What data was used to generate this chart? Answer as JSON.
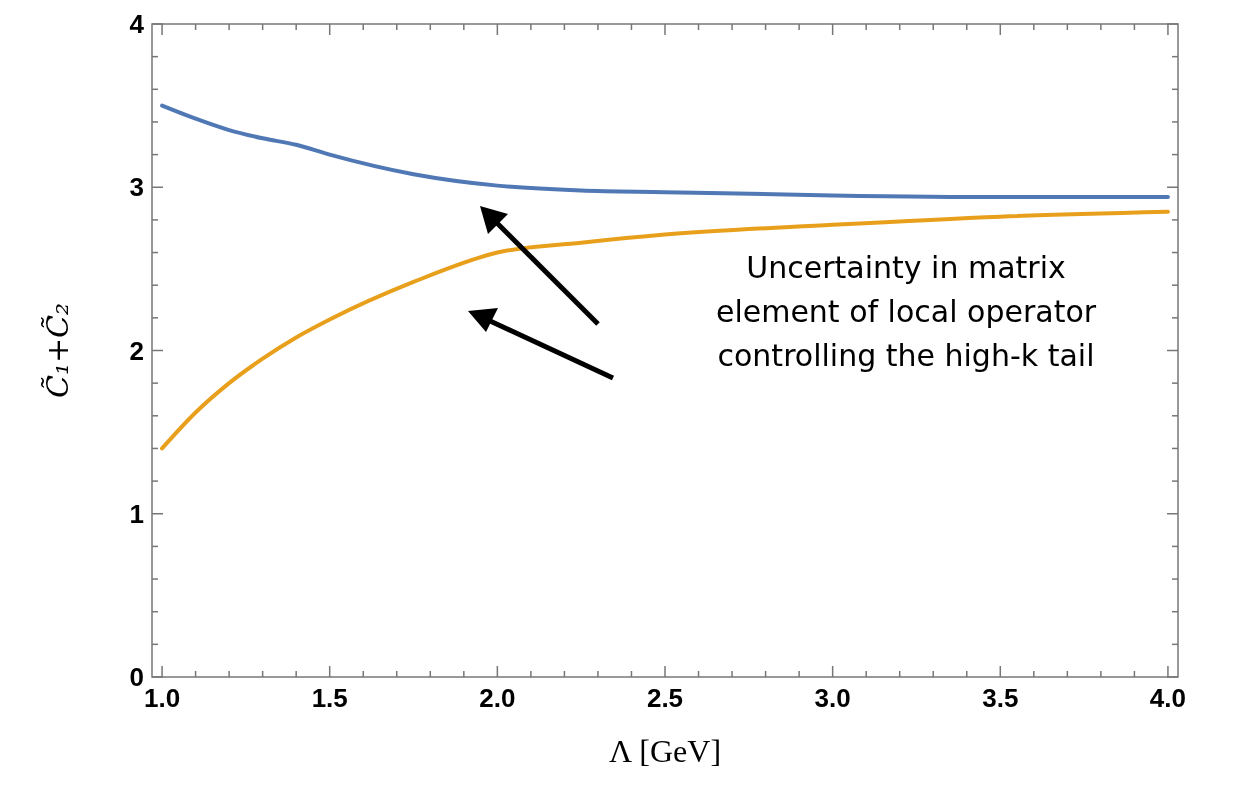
{
  "chart_data": {
    "type": "line",
    "xlabel": "Λ [GeV]",
    "ylabel": "C̃₁+C̃₂",
    "x": [
      1.0,
      1.1,
      1.2,
      1.3,
      1.4,
      1.5,
      1.75,
      2.0,
      2.25,
      2.5,
      3.0,
      3.5,
      4.0
    ],
    "series": [
      {
        "color": "#5078b4",
        "values": [
          3.5,
          3.42,
          3.35,
          3.3,
          3.26,
          3.2,
          3.08,
          3.01,
          2.98,
          2.97,
          2.95,
          2.94,
          2.94
        ]
      },
      {
        "color": "#e8a01c",
        "values": [
          1.4,
          1.62,
          1.8,
          1.95,
          2.08,
          2.19,
          2.42,
          2.6,
          2.66,
          2.71,
          2.77,
          2.82,
          2.85
        ]
      }
    ],
    "xlim": [
      0.97,
      4.03
    ],
    "ylim": [
      0,
      4
    ],
    "xticks": [
      {
        "value": 1.0,
        "label": "1.0"
      },
      {
        "value": 1.1,
        "label": null
      },
      {
        "value": 1.2,
        "label": null
      },
      {
        "value": 1.3,
        "label": null
      },
      {
        "value": 1.4,
        "label": null
      },
      {
        "value": 1.5,
        "label": "1.5"
      },
      {
        "value": 1.6,
        "label": null
      },
      {
        "value": 1.7,
        "label": null
      },
      {
        "value": 1.8,
        "label": null
      },
      {
        "value": 1.9,
        "label": null
      },
      {
        "value": 2.0,
        "label": "2.0"
      },
      {
        "value": 2.1,
        "label": null
      },
      {
        "value": 2.2,
        "label": null
      },
      {
        "value": 2.3,
        "label": null
      },
      {
        "value": 2.4,
        "label": null
      },
      {
        "value": 2.5,
        "label": "2.5"
      },
      {
        "value": 2.6,
        "label": null
      },
      {
        "value": 2.7,
        "label": null
      },
      {
        "value": 2.8,
        "label": null
      },
      {
        "value": 2.9,
        "label": null
      },
      {
        "value": 3.0,
        "label": "3.0"
      },
      {
        "value": 3.1,
        "label": null
      },
      {
        "value": 3.2,
        "label": null
      },
      {
        "value": 3.3,
        "label": null
      },
      {
        "value": 3.4,
        "label": null
      },
      {
        "value": 3.5,
        "label": "3.5"
      },
      {
        "value": 3.6,
        "label": null
      },
      {
        "value": 3.7,
        "label": null
      },
      {
        "value": 3.8,
        "label": null
      },
      {
        "value": 3.9,
        "label": null
      },
      {
        "value": 4.0,
        "label": "4.0"
      }
    ],
    "yticks": [
      0,
      {
        "value": 0.2,
        "label": null
      },
      {
        "value": 0.4,
        "label": null
      },
      {
        "value": 0.6,
        "label": null
      },
      {
        "value": 0.8,
        "label": null
      },
      1,
      {
        "value": 1.2,
        "label": null
      },
      {
        "value": 1.4,
        "label": null
      },
      {
        "value": 1.6,
        "label": null
      },
      {
        "value": 1.8,
        "label": null
      },
      2,
      {
        "value": 2.2,
        "label": null
      },
      {
        "value": 2.4,
        "label": null
      },
      {
        "value": 2.6,
        "label": null
      },
      {
        "value": 2.8,
        "label": null
      },
      3,
      {
        "value": 3.2,
        "label": null
      },
      {
        "value": 3.4,
        "label": null
      },
      {
        "value": 3.6,
        "label": null
      },
      {
        "value": 3.8,
        "label": null
      },
      4
    ],
    "annotations": [
      "Uncertainty in matrix\nelement of local operator\ncontrolling the high-k tail"
    ]
  }
}
